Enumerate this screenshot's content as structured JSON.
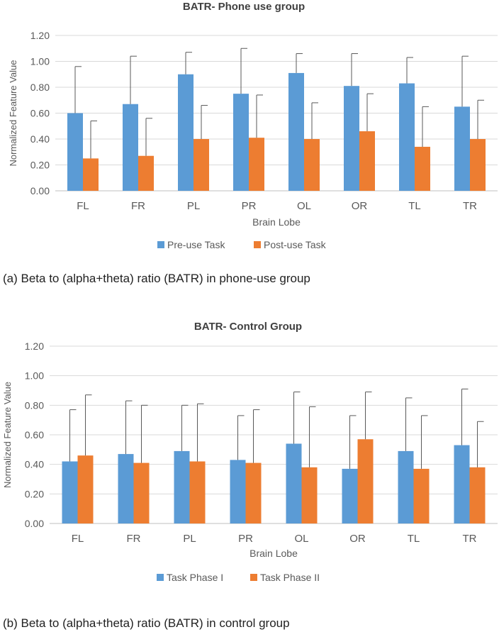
{
  "chart_data": [
    {
      "type": "bar",
      "title": "BATR- Phone use group",
      "xlabel": "Brain Lobe",
      "ylabel": "Normalized Feature Value",
      "ylim": [
        0,
        1.2
      ],
      "yticks": [
        "0.00",
        "0.20",
        "0.40",
        "0.60",
        "0.80",
        "1.00",
        "1.20"
      ],
      "grid": true,
      "legend_position": "bottom",
      "categories": [
        "FL",
        "FR",
        "PL",
        "PR",
        "OL",
        "OR",
        "TL",
        "TR"
      ],
      "series": [
        {
          "name": "Pre-use Task",
          "color": "#5b9bd5",
          "values": [
            0.6,
            0.67,
            0.9,
            0.75,
            0.91,
            0.81,
            0.83,
            0.65
          ],
          "error_upper": [
            0.96,
            1.04,
            1.07,
            1.1,
            1.06,
            1.06,
            1.03,
            1.04
          ]
        },
        {
          "name": "Post-use Task",
          "color": "#ed7d31",
          "values": [
            0.25,
            0.27,
            0.4,
            0.41,
            0.4,
            0.46,
            0.34,
            0.4
          ],
          "error_upper": [
            0.54,
            0.56,
            0.66,
            0.74,
            0.68,
            0.75,
            0.65,
            0.7
          ]
        }
      ],
      "caption": "(a) Beta to (alpha+theta) ratio (BATR) in phone-use group"
    },
    {
      "type": "bar",
      "title": "BATR- Control Group",
      "xlabel": "Brain Lobe",
      "ylabel": "Normalized Feature Value",
      "ylim": [
        0,
        1.2
      ],
      "yticks": [
        "0.00",
        "0.20",
        "0.40",
        "0.60",
        "0.80",
        "1.00",
        "1.20"
      ],
      "grid": true,
      "legend_position": "bottom",
      "categories": [
        "FL",
        "FR",
        "PL",
        "PR",
        "OL",
        "OR",
        "TL",
        "TR"
      ],
      "series": [
        {
          "name": "Task Phase I",
          "color": "#5b9bd5",
          "values": [
            0.42,
            0.47,
            0.49,
            0.43,
            0.54,
            0.37,
            0.49,
            0.53
          ],
          "error_upper": [
            0.77,
            0.83,
            0.8,
            0.73,
            0.89,
            0.73,
            0.85,
            0.91
          ]
        },
        {
          "name": "Task Phase II",
          "color": "#ed7d31",
          "values": [
            0.46,
            0.41,
            0.42,
            0.41,
            0.38,
            0.57,
            0.37,
            0.38
          ],
          "error_upper": [
            0.87,
            0.8,
            0.81,
            0.77,
            0.79,
            0.89,
            0.73,
            0.69
          ]
        }
      ],
      "caption": "(b) Beta to (alpha+theta) ratio (BATR) in control group"
    }
  ]
}
